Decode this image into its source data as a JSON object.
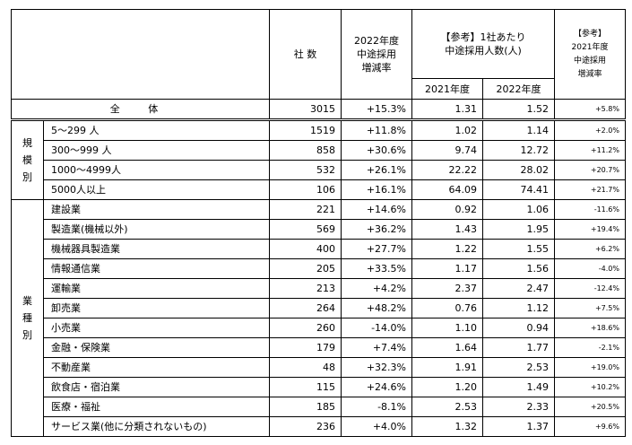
{
  "header": {
    "companies": "社 数",
    "change_2022": [
      "2022年度",
      "中途採用",
      "増減率"
    ],
    "ref_per_company": [
      "【参考】1社あたり",
      "中途採用人数(人)"
    ],
    "year_2021": "2021年度",
    "year_2022": "2022年度",
    "ref_change_2021": [
      "【参考】",
      "2021年度",
      "中途採用",
      "増減率"
    ]
  },
  "total": {
    "label": "全 体",
    "companies": "3015",
    "change_2022": "+15.3%",
    "avg_2021": "1.31",
    "avg_2022": "1.52",
    "change_2021": "+5.8%"
  },
  "groups": [
    {
      "category_chars": [
        "規",
        "模",
        "別"
      ],
      "rows": [
        {
          "label": "5～299 人",
          "companies": "1519",
          "change_2022": "+11.8%",
          "avg_2021": "1.02",
          "avg_2022": "1.14",
          "change_2021": "+2.0%"
        },
        {
          "label": "300～999 人",
          "companies": "858",
          "change_2022": "+30.6%",
          "avg_2021": "9.74",
          "avg_2022": "12.72",
          "change_2021": "+11.2%"
        },
        {
          "label": "1000～4999人",
          "companies": "532",
          "change_2022": "+26.1%",
          "avg_2021": "22.22",
          "avg_2022": "28.02",
          "change_2021": "+20.7%"
        },
        {
          "label": "5000人以上",
          "companies": "106",
          "change_2022": "+16.1%",
          "avg_2021": "64.09",
          "avg_2022": "74.41",
          "change_2021": "+21.7%"
        }
      ]
    },
    {
      "category_chars": [
        "業",
        "種",
        "別"
      ],
      "rows": [
        {
          "label": "建設業",
          "companies": "221",
          "change_2022": "+14.6%",
          "avg_2021": "0.92",
          "avg_2022": "1.06",
          "change_2021": "-11.6%"
        },
        {
          "label": "製造業(機械以外)",
          "companies": "569",
          "change_2022": "+36.2%",
          "avg_2021": "1.43",
          "avg_2022": "1.95",
          "change_2021": "+19.4%"
        },
        {
          "label": "機械器具製造業",
          "companies": "400",
          "change_2022": "+27.7%",
          "avg_2021": "1.22",
          "avg_2022": "1.55",
          "change_2021": "+6.2%"
        },
        {
          "label": "情報通信業",
          "companies": "205",
          "change_2022": "+33.5%",
          "avg_2021": "1.17",
          "avg_2022": "1.56",
          "change_2021": "-4.0%"
        },
        {
          "label": "運輸業",
          "companies": "213",
          "change_2022": "+4.2%",
          "avg_2021": "2.37",
          "avg_2022": "2.47",
          "change_2021": "-12.4%"
        },
        {
          "label": "卸売業",
          "companies": "264",
          "change_2022": "+48.2%",
          "avg_2021": "0.76",
          "avg_2022": "1.12",
          "change_2021": "+7.5%"
        },
        {
          "label": "小売業",
          "companies": "260",
          "change_2022": "-14.0%",
          "avg_2021": "1.10",
          "avg_2022": "0.94",
          "change_2021": "+18.6%"
        },
        {
          "label": "金融・保険業",
          "companies": "179",
          "change_2022": "+7.4%",
          "avg_2021": "1.64",
          "avg_2022": "1.77",
          "change_2021": "-2.1%"
        },
        {
          "label": "不動産業",
          "companies": "48",
          "change_2022": "+32.3%",
          "avg_2021": "1.91",
          "avg_2022": "2.53",
          "change_2021": "+19.0%"
        },
        {
          "label": "飲食店・宿泊業",
          "companies": "115",
          "change_2022": "+24.6%",
          "avg_2021": "1.20",
          "avg_2022": "1.49",
          "change_2021": "+10.2%"
        },
        {
          "label": "医療・福祉",
          "companies": "185",
          "change_2022": "-8.1%",
          "avg_2021": "2.53",
          "avg_2022": "2.33",
          "change_2021": "+20.5%"
        },
        {
          "label": "サービス業(他に分類されないもの)",
          "companies": "236",
          "change_2022": "+4.0%",
          "avg_2021": "1.32",
          "avg_2022": "1.37",
          "change_2021": "+9.6%"
        }
      ]
    }
  ]
}
